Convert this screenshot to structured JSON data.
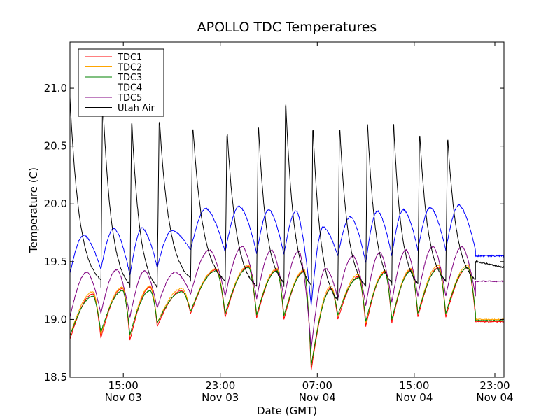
{
  "chart_data": {
    "type": "line",
    "title": "APOLLO TDC Temperatures",
    "xlabel": "Date (GMT)",
    "ylabel": "Temperature (C)",
    "ylim": [
      18.5,
      21.4
    ],
    "xlim": [
      10.6,
      46.4
    ],
    "x_unit": "hours since Nov 03 00:00 GMT",
    "yticks": [
      {
        "value": 18.5,
        "label": "18.5"
      },
      {
        "value": 19.0,
        "label": "19.0"
      },
      {
        "value": 19.5,
        "label": "19.5"
      },
      {
        "value": 20.0,
        "label": "20.0"
      },
      {
        "value": 20.5,
        "label": "20.5"
      },
      {
        "value": 21.0,
        "label": "21.0"
      }
    ],
    "xticks": [
      {
        "value": 15,
        "label_time": "15:00",
        "label_date": "Nov 03"
      },
      {
        "value": 23,
        "label_time": "23:00",
        "label_date": "Nov 03"
      },
      {
        "value": 31,
        "label_time": "07:00",
        "label_date": "Nov 04"
      },
      {
        "value": 39,
        "label_time": "15:00",
        "label_date": "Nov 04"
      },
      {
        "value": 47,
        "label_time": "23:00",
        "label_date": "Nov 04"
      }
    ],
    "cycle_starts": [
      10.6,
      13.15,
      15.55,
      17.8,
      20.55,
      23.4,
      26.0,
      28.25,
      30.5,
      32.7,
      35.0,
      37.15,
      39.3,
      41.6,
      44.05,
      46.4
    ],
    "series": [
      {
        "name": "TDC1",
        "color": "#ff0000",
        "noise": 0.004,
        "trough": 18.98,
        "peak_frac": 0.75,
        "troughs": [
          18.83,
          18.84,
          18.82,
          18.94,
          19.05,
          19.02,
          19.01,
          19.0,
          18.56,
          19.0,
          18.94,
          18.97,
          19.02,
          19.02
        ],
        "peaks": [
          19.22,
          19.27,
          19.28,
          19.25,
          19.43,
          19.46,
          19.43,
          19.42,
          19.27,
          19.37,
          19.41,
          19.43,
          19.45,
          19.45
        ]
      },
      {
        "name": "TDC2",
        "color": "#ffa500",
        "noise": 0.004,
        "trough": 19.0,
        "peak_frac": 0.75,
        "troughs": [
          18.86,
          18.87,
          18.86,
          18.97,
          19.07,
          19.05,
          19.04,
          19.03,
          18.6,
          19.03,
          18.97,
          19.0,
          19.05,
          19.05
        ],
        "peaks": [
          19.24,
          19.28,
          19.29,
          19.27,
          19.44,
          19.47,
          19.44,
          19.43,
          19.29,
          19.39,
          19.42,
          19.44,
          19.47,
          19.47
        ]
      },
      {
        "name": "TDC3",
        "color": "#008000",
        "noise": 0.004,
        "trough": 18.99,
        "peak_frac": 0.75,
        "troughs": [
          18.86,
          18.89,
          18.87,
          18.97,
          19.07,
          19.05,
          19.04,
          19.03,
          18.6,
          19.04,
          18.98,
          19.0,
          19.05,
          19.05
        ],
        "peaks": [
          19.2,
          19.25,
          19.25,
          19.24,
          19.42,
          19.45,
          19.42,
          19.41,
          19.26,
          19.36,
          19.4,
          19.42,
          19.44,
          19.45
        ]
      },
      {
        "name": "TDC4",
        "color": "#0000ff",
        "noise": 0.006,
        "trough": 19.55,
        "peak_frac": 0.45,
        "troughs": [
          19.4,
          19.43,
          19.38,
          19.45,
          19.6,
          19.58,
          19.57,
          19.56,
          19.12,
          19.55,
          19.49,
          19.55,
          19.6,
          19.6
        ],
        "peaks": [
          19.73,
          19.79,
          19.79,
          19.77,
          19.96,
          19.98,
          19.95,
          19.94,
          19.8,
          19.89,
          19.94,
          19.95,
          19.97,
          19.99
        ]
      },
      {
        "name": "TDC5",
        "color": "#800080",
        "noise": 0.005,
        "trough": 19.33,
        "peak_frac": 0.55,
        "troughs": [
          19.02,
          19.05,
          19.02,
          19.1,
          19.22,
          19.2,
          19.18,
          19.18,
          18.75,
          19.18,
          19.12,
          19.15,
          19.2,
          19.2
        ],
        "peaks": [
          19.41,
          19.43,
          19.42,
          19.41,
          19.6,
          19.63,
          19.6,
          19.59,
          19.44,
          19.55,
          19.58,
          19.6,
          19.63,
          19.63
        ]
      },
      {
        "name": "Utah Air",
        "color": "#000000",
        "noise": 0.006,
        "trough": 19.5,
        "peak_frac": 0.06,
        "troughs": [
          19.28,
          19.28,
          19.27,
          19.35,
          19.33,
          19.28,
          19.31,
          19.28,
          19.15,
          19.28,
          19.31,
          19.3,
          19.33,
          19.34
        ],
        "peaks": [
          20.76,
          20.94,
          20.76,
          20.76,
          20.7,
          20.65,
          20.71,
          20.92,
          20.7,
          20.7,
          20.74,
          20.74,
          20.64,
          20.6
        ],
        "head": 20.92
      }
    ],
    "legend": {
      "position": "upper-left"
    }
  }
}
